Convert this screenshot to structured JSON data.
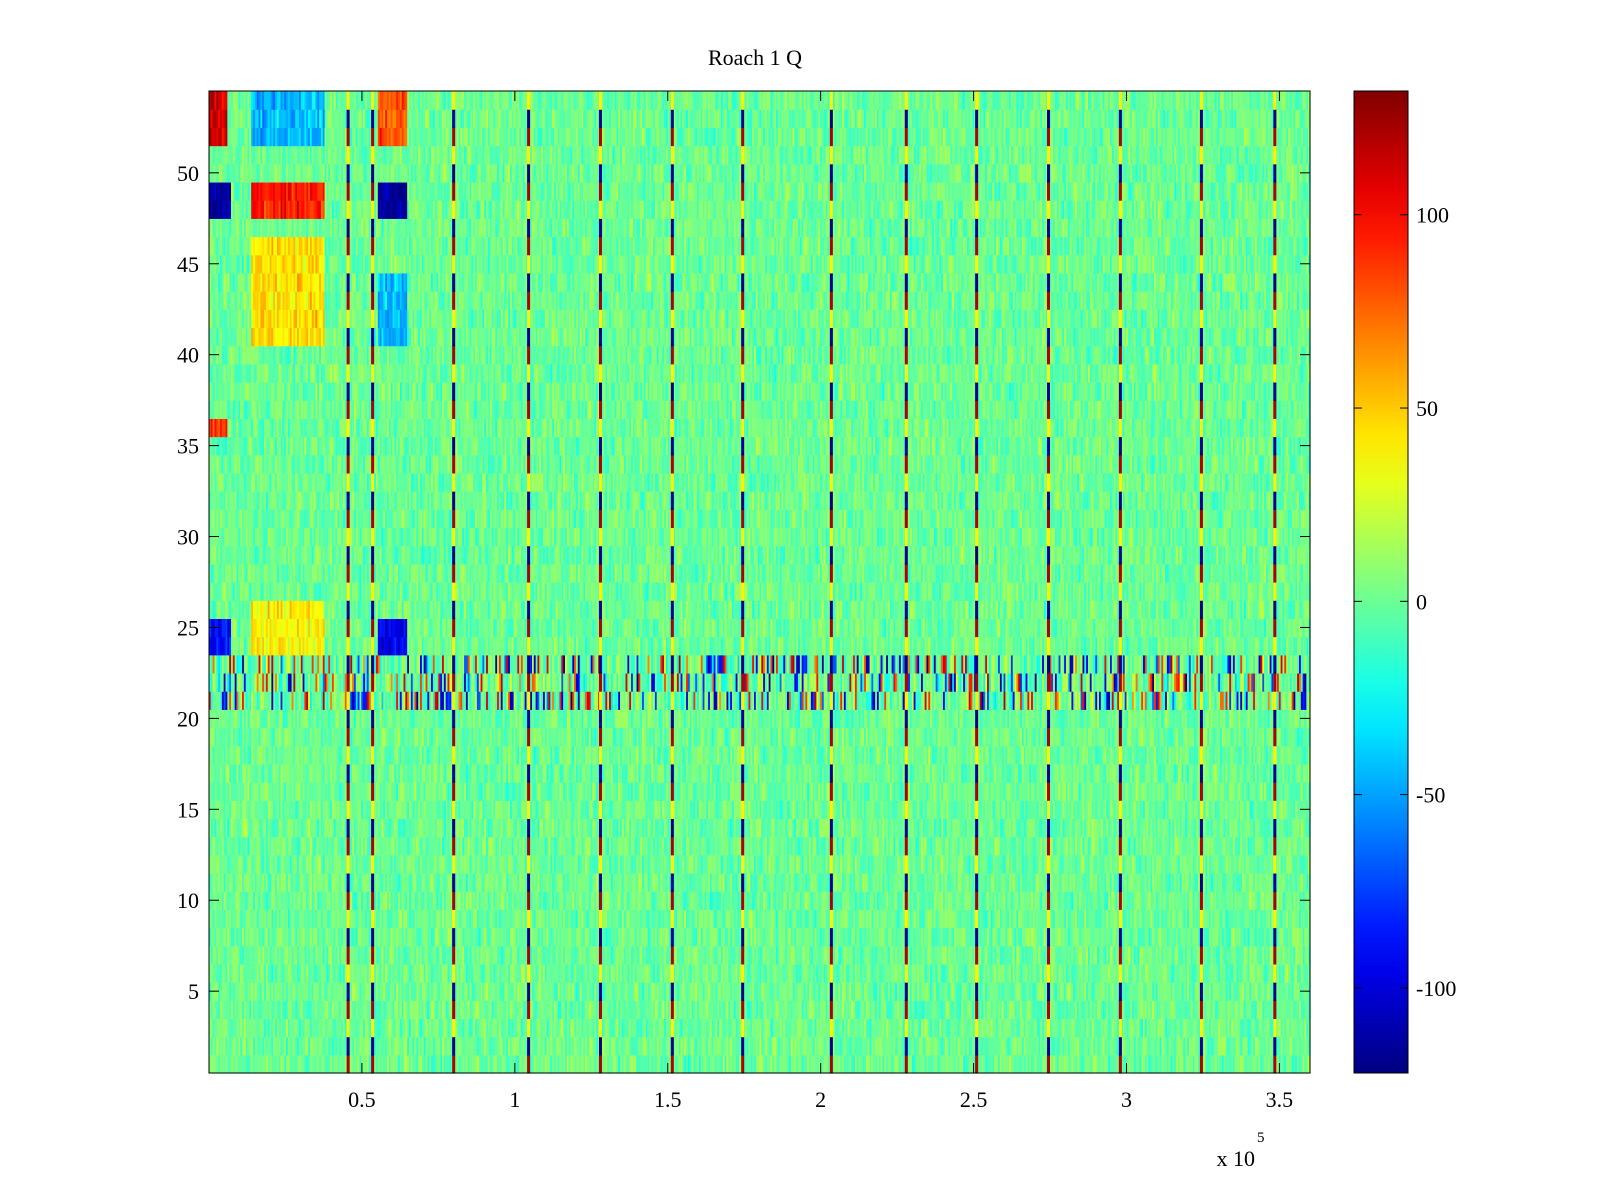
{
  "chart_data": {
    "type": "heatmap",
    "title": "Roach 1 Q",
    "xlabel": "",
    "ylabel": "",
    "x_multiplier_label": "x 10",
    "x_multiplier_exponent": "5",
    "xlim": [
      0,
      3.6
    ],
    "ylim": [
      0.5,
      54.5
    ],
    "x_ticks": [
      0.5,
      1,
      1.5,
      2,
      2.5,
      3,
      3.5
    ],
    "x_tick_labels": [
      "0.5",
      "1",
      "1.5",
      "2",
      "2.5",
      "3",
      "3.5"
    ],
    "y_ticks": [
      5,
      10,
      15,
      20,
      25,
      30,
      35,
      40,
      45,
      50
    ],
    "y_tick_labels": [
      "5",
      "10",
      "15",
      "20",
      "25",
      "30",
      "35",
      "40",
      "45",
      "50"
    ],
    "rows": 54,
    "colormap": "jet",
    "clim": [
      -122,
      132
    ],
    "colorbar": {
      "ticks": [
        -100,
        -50,
        0,
        50,
        100
      ],
      "tick_labels": [
        "-100",
        "-50",
        "0",
        "50",
        "100"
      ]
    },
    "background_value": 0,
    "spike_columns_x": [
      0.455,
      0.535,
      0.8,
      1.045,
      1.28,
      1.515,
      1.745,
      2.035,
      2.28,
      2.51,
      2.745,
      2.98,
      3.245,
      3.485
    ],
    "anomalous_row_band": [
      21,
      23
    ],
    "high_regions": [
      {
        "x": [
          0.0,
          0.06
        ],
        "y": [
          52,
          54
        ],
        "value": 110
      },
      {
        "x": [
          0.14,
          0.38
        ],
        "y": [
          47.5,
          49.5
        ],
        "value": 95
      },
      {
        "x": [
          0.55,
          0.65
        ],
        "y": [
          52,
          54
        ],
        "value": 80
      },
      {
        "x": [
          0.14,
          0.38
        ],
        "y": [
          41,
          46
        ],
        "value": 45
      },
      {
        "x": [
          0.0,
          0.06
        ],
        "y": [
          35.5,
          36.5
        ],
        "value": 85
      },
      {
        "x": [
          0.14,
          0.38
        ],
        "y": [
          23.5,
          26
        ],
        "value": 40
      }
    ],
    "low_regions": [
      {
        "x": [
          0.0,
          0.07
        ],
        "y": [
          47.5,
          49.5
        ],
        "value": -115
      },
      {
        "x": [
          0.55,
          0.65
        ],
        "y": [
          47.5,
          49.5
        ],
        "value": -115
      },
      {
        "x": [
          0.0,
          0.07
        ],
        "y": [
          23.5,
          25.5
        ],
        "value": -90
      },
      {
        "x": [
          0.55,
          0.65
        ],
        "y": [
          23.5,
          25.5
        ],
        "value": -95
      },
      {
        "x": [
          0.14,
          0.38
        ],
        "y": [
          52,
          54
        ],
        "value": -45
      },
      {
        "x": [
          0.55,
          0.65
        ],
        "y": [
          40.5,
          44.5
        ],
        "value": -45
      }
    ]
  }
}
